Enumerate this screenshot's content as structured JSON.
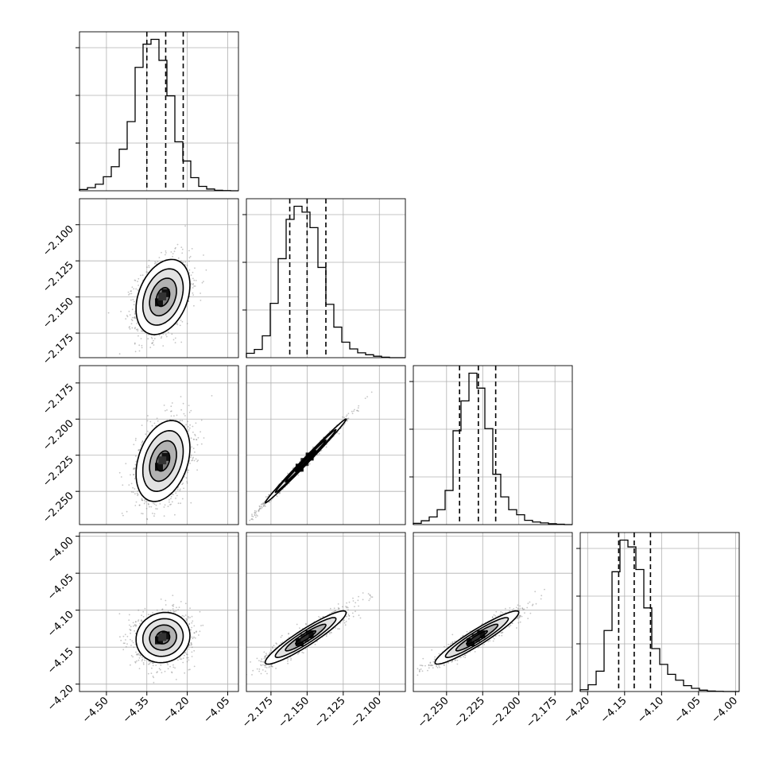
{
  "chart_data": {
    "type": "corner",
    "title": "",
    "parameters": [
      {
        "label": "",
        "range": [
          -4.6,
          -4.01
        ],
        "quantiles": [
          -4.35,
          -4.28,
          -4.215
        ],
        "hist": [
          0.3,
          0.7,
          1.5,
          3.2,
          5.5,
          9.5,
          15.8,
          28.2,
          33.5,
          34.6,
          29.8,
          21.7,
          11.2,
          6.8,
          3.0,
          1.0,
          0.4,
          0.1,
          0.05,
          0.0
        ],
        "ticks": [
          -4.5,
          -4.35,
          -4.2,
          -4.05
        ],
        "tick_labels": [
          "−4.50",
          "−4.35",
          "−4.20",
          "−4.05"
        ]
      },
      {
        "label": "",
        "range": [
          -2.192,
          -2.082
        ],
        "quantiles": [
          -2.162,
          -2.15,
          -2.137
        ],
        "hist": [
          0.9,
          1.7,
          4.5,
          11.2,
          20.4,
          28.5,
          31.2,
          30.0,
          26.8,
          18.6,
          11.0,
          6.3,
          3.2,
          1.8,
          1.0,
          0.6,
          0.3,
          0.1,
          0.0,
          0.0
        ],
        "ticks": [
          -2.175,
          -2.15,
          -2.125,
          -2.1
        ],
        "tick_labels": [
          "−2.175",
          "−2.150",
          "−2.125",
          "−2.100"
        ]
      },
      {
        "label": "",
        "range": [
          -2.273,
          -2.163
        ],
        "quantiles": [
          -2.241,
          -2.228,
          -2.216
        ],
        "hist": [
          0.3,
          0.9,
          1.8,
          3.5,
          8.0,
          22.0,
          29.0,
          35.5,
          32.0,
          22.5,
          11.8,
          6.5,
          3.5,
          2.3,
          1.0,
          0.6,
          0.4,
          0.2,
          0.1,
          0.0
        ],
        "ticks": [
          -2.25,
          -2.225,
          -2.2,
          -2.175
        ],
        "tick_labels": [
          "−2.250",
          "−2.225",
          "−2.200",
          "−2.175"
        ]
      },
      {
        "label": "",
        "range": [
          -4.21,
          -3.995
        ],
        "quantiles": [
          -4.158,
          -4.137,
          -4.115
        ],
        "hist": [
          0.4,
          1.5,
          4.5,
          13.5,
          26.5,
          33.5,
          32.0,
          27.0,
          18.5,
          9.5,
          6.0,
          3.8,
          2.5,
          1.3,
          0.7,
          0.3,
          0.1,
          0.05,
          0.0,
          0.0
        ],
        "ticks": [
          -4.2,
          -4.15,
          -4.1,
          -4.05,
          -4.0
        ],
        "tick_labels": [
          "−4.20",
          "−4.15",
          "−4.10",
          "−4.05",
          "−4.00"
        ]
      }
    ],
    "pairs": [
      {
        "row": 1,
        "col": 0,
        "center": [
          -4.29,
          -2.15
        ],
        "sigma": [
          0.05,
          0.013
        ],
        "rho": 0.32
      },
      {
        "row": 2,
        "col": 0,
        "center": [
          -4.29,
          -2.229
        ],
        "sigma": [
          0.05,
          0.014
        ],
        "rho": 0.32
      },
      {
        "row": 2,
        "col": 1,
        "center": [
          -2.151,
          -2.229
        ],
        "sigma": [
          0.014,
          0.0145
        ],
        "rho": 0.995
      },
      {
        "row": 3,
        "col": 0,
        "center": [
          -4.29,
          -4.137
        ],
        "sigma": [
          0.05,
          0.017
        ],
        "rho": 0.08
      },
      {
        "row": 3,
        "col": 1,
        "center": [
          -2.151,
          -4.137
        ],
        "sigma": [
          0.014,
          0.018
        ],
        "rho": 0.93
      },
      {
        "row": 3,
        "col": 2,
        "center": [
          -2.229,
          -4.137
        ],
        "sigma": [
          0.0145,
          0.018
        ],
        "rho": 0.94
      }
    ],
    "contour_levels_sigma": [
      0.5,
      1.0,
      1.5,
      2.0
    ],
    "grid": true,
    "colors": {
      "line": "#000000",
      "grid": "#b0b0b0",
      "points": "#7f7f7f"
    }
  }
}
